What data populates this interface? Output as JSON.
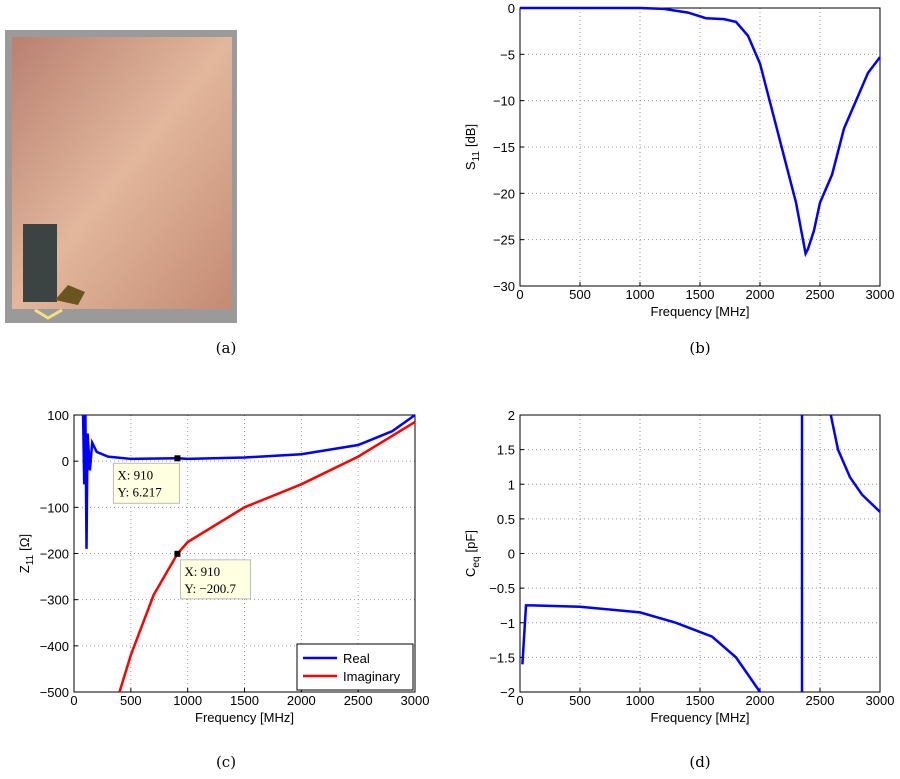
{
  "captions": [
    "(a)",
    "(b)",
    "(c)",
    "(d)"
  ],
  "chart_data": [
    {
      "type": "line",
      "xlabel": "Frequency [MHz]",
      "ylabel": {
        "main": "S",
        "sub": "11",
        "rest": "[dB]"
      },
      "xlim": [
        0,
        3000
      ],
      "ylim": [
        -30,
        0
      ],
      "xticks": [
        0,
        500,
        1000,
        1500,
        2000,
        2500,
        3000
      ],
      "yticks": [
        {
          "value": -30,
          "label": "−30"
        },
        {
          "value": -25,
          "label": "−25"
        },
        {
          "value": -20,
          "label": "−20"
        },
        {
          "value": -15,
          "label": "−15"
        },
        {
          "value": -10,
          "label": "−10"
        },
        {
          "value": -5,
          "label": "−5"
        },
        0
      ],
      "grid": true,
      "series": [
        {
          "color": "#0000ff",
          "x": [
            0,
            500,
            1000,
            1200,
            1400,
            1550,
            1700,
            1800,
            1900,
            2000,
            2100,
            2200,
            2300,
            2380,
            2400,
            2450,
            2500,
            2600,
            2700,
            2800,
            2900,
            3000
          ],
          "values": [
            0,
            0,
            0,
            -0.1,
            -0.5,
            -1.1,
            -1.2,
            -1.5,
            -3,
            -6,
            -11,
            -16,
            -21,
            -26.5,
            -26,
            -24,
            -21,
            -18,
            -13,
            -10,
            -7,
            -5.3
          ]
        }
      ]
    },
    {
      "type": "line",
      "xlabel": "Frequency [MHz]",
      "ylabel": {
        "main": "Z",
        "sub": "11",
        "rest": "[Ω]"
      },
      "xlim": [
        0,
        3000
      ],
      "ylim": [
        -500,
        100
      ],
      "xticks": [
        0,
        500,
        1000,
        1500,
        2000,
        2500,
        3000
      ],
      "yticks": [
        {
          "value": -500,
          "label": "−500"
        },
        {
          "value": -400,
          "label": "−400"
        },
        {
          "value": -300,
          "label": "−300"
        },
        {
          "value": -200,
          "label": "−200"
        },
        {
          "value": -100,
          "label": "−100"
        },
        0,
        100
      ],
      "grid": true,
      "legend": "lower right",
      "series": [
        {
          "name": "Real",
          "color": "#0000ff",
          "x": [
            80,
            90,
            100,
            110,
            120,
            140,
            160,
            200,
            300,
            500,
            910,
            1000,
            1500,
            2000,
            2500,
            2800,
            3000
          ],
          "values": [
            100,
            -50,
            100,
            -190,
            60,
            -20,
            40,
            20,
            10,
            5,
            6.217,
            5,
            8,
            15,
            35,
            65,
            100
          ]
        },
        {
          "name": "Imaginary",
          "color": "#ff0000",
          "x": [
            400,
            500,
            700,
            910,
            1000,
            1500,
            2000,
            2500,
            2800,
            3000
          ],
          "values": [
            -500,
            -420,
            -290,
            -200.7,
            -175,
            -100,
            -50,
            10,
            55,
            85
          ]
        }
      ],
      "annotations": [
        {
          "x": 910,
          "y": 6.217,
          "line1": "X: 910",
          "line2": "Y: 6.217"
        },
        {
          "x": 910,
          "y": -200.7,
          "line1": "X: 910",
          "line2": "Y: −200.7"
        }
      ]
    },
    {
      "type": "line",
      "xlabel": "Frequency [MHz]",
      "ylabel": {
        "main": "C",
        "sub": "eq",
        "rest": "[pF]"
      },
      "xlim": [
        0,
        3000
      ],
      "ylim": [
        -2,
        2
      ],
      "xticks": [
        0,
        500,
        1000,
        1500,
        2000,
        2500,
        3000
      ],
      "yticks": [
        {
          "value": -2,
          "label": "−2"
        },
        {
          "value": -1.5,
          "label": "−1.5"
        },
        {
          "value": -1,
          "label": "−1"
        },
        {
          "value": -0.5,
          "label": "−0.5"
        },
        0,
        0.5,
        1,
        1.5,
        2
      ],
      "grid": true,
      "series": [
        {
          "color": "#0000ff",
          "x": [
            20,
            50,
            100,
            500,
            1000,
            1300,
            1600,
            1800,
            2000,
            null,
            2350,
            2350,
            null,
            2590,
            2650,
            2750,
            2850,
            3000
          ],
          "values": [
            -1.6,
            -0.75,
            -0.75,
            -0.77,
            -0.85,
            -1.0,
            -1.2,
            -1.5,
            -2,
            null,
            -2,
            2,
            null,
            2,
            1.5,
            1.1,
            0.85,
            0.6
          ]
        }
      ]
    }
  ]
}
